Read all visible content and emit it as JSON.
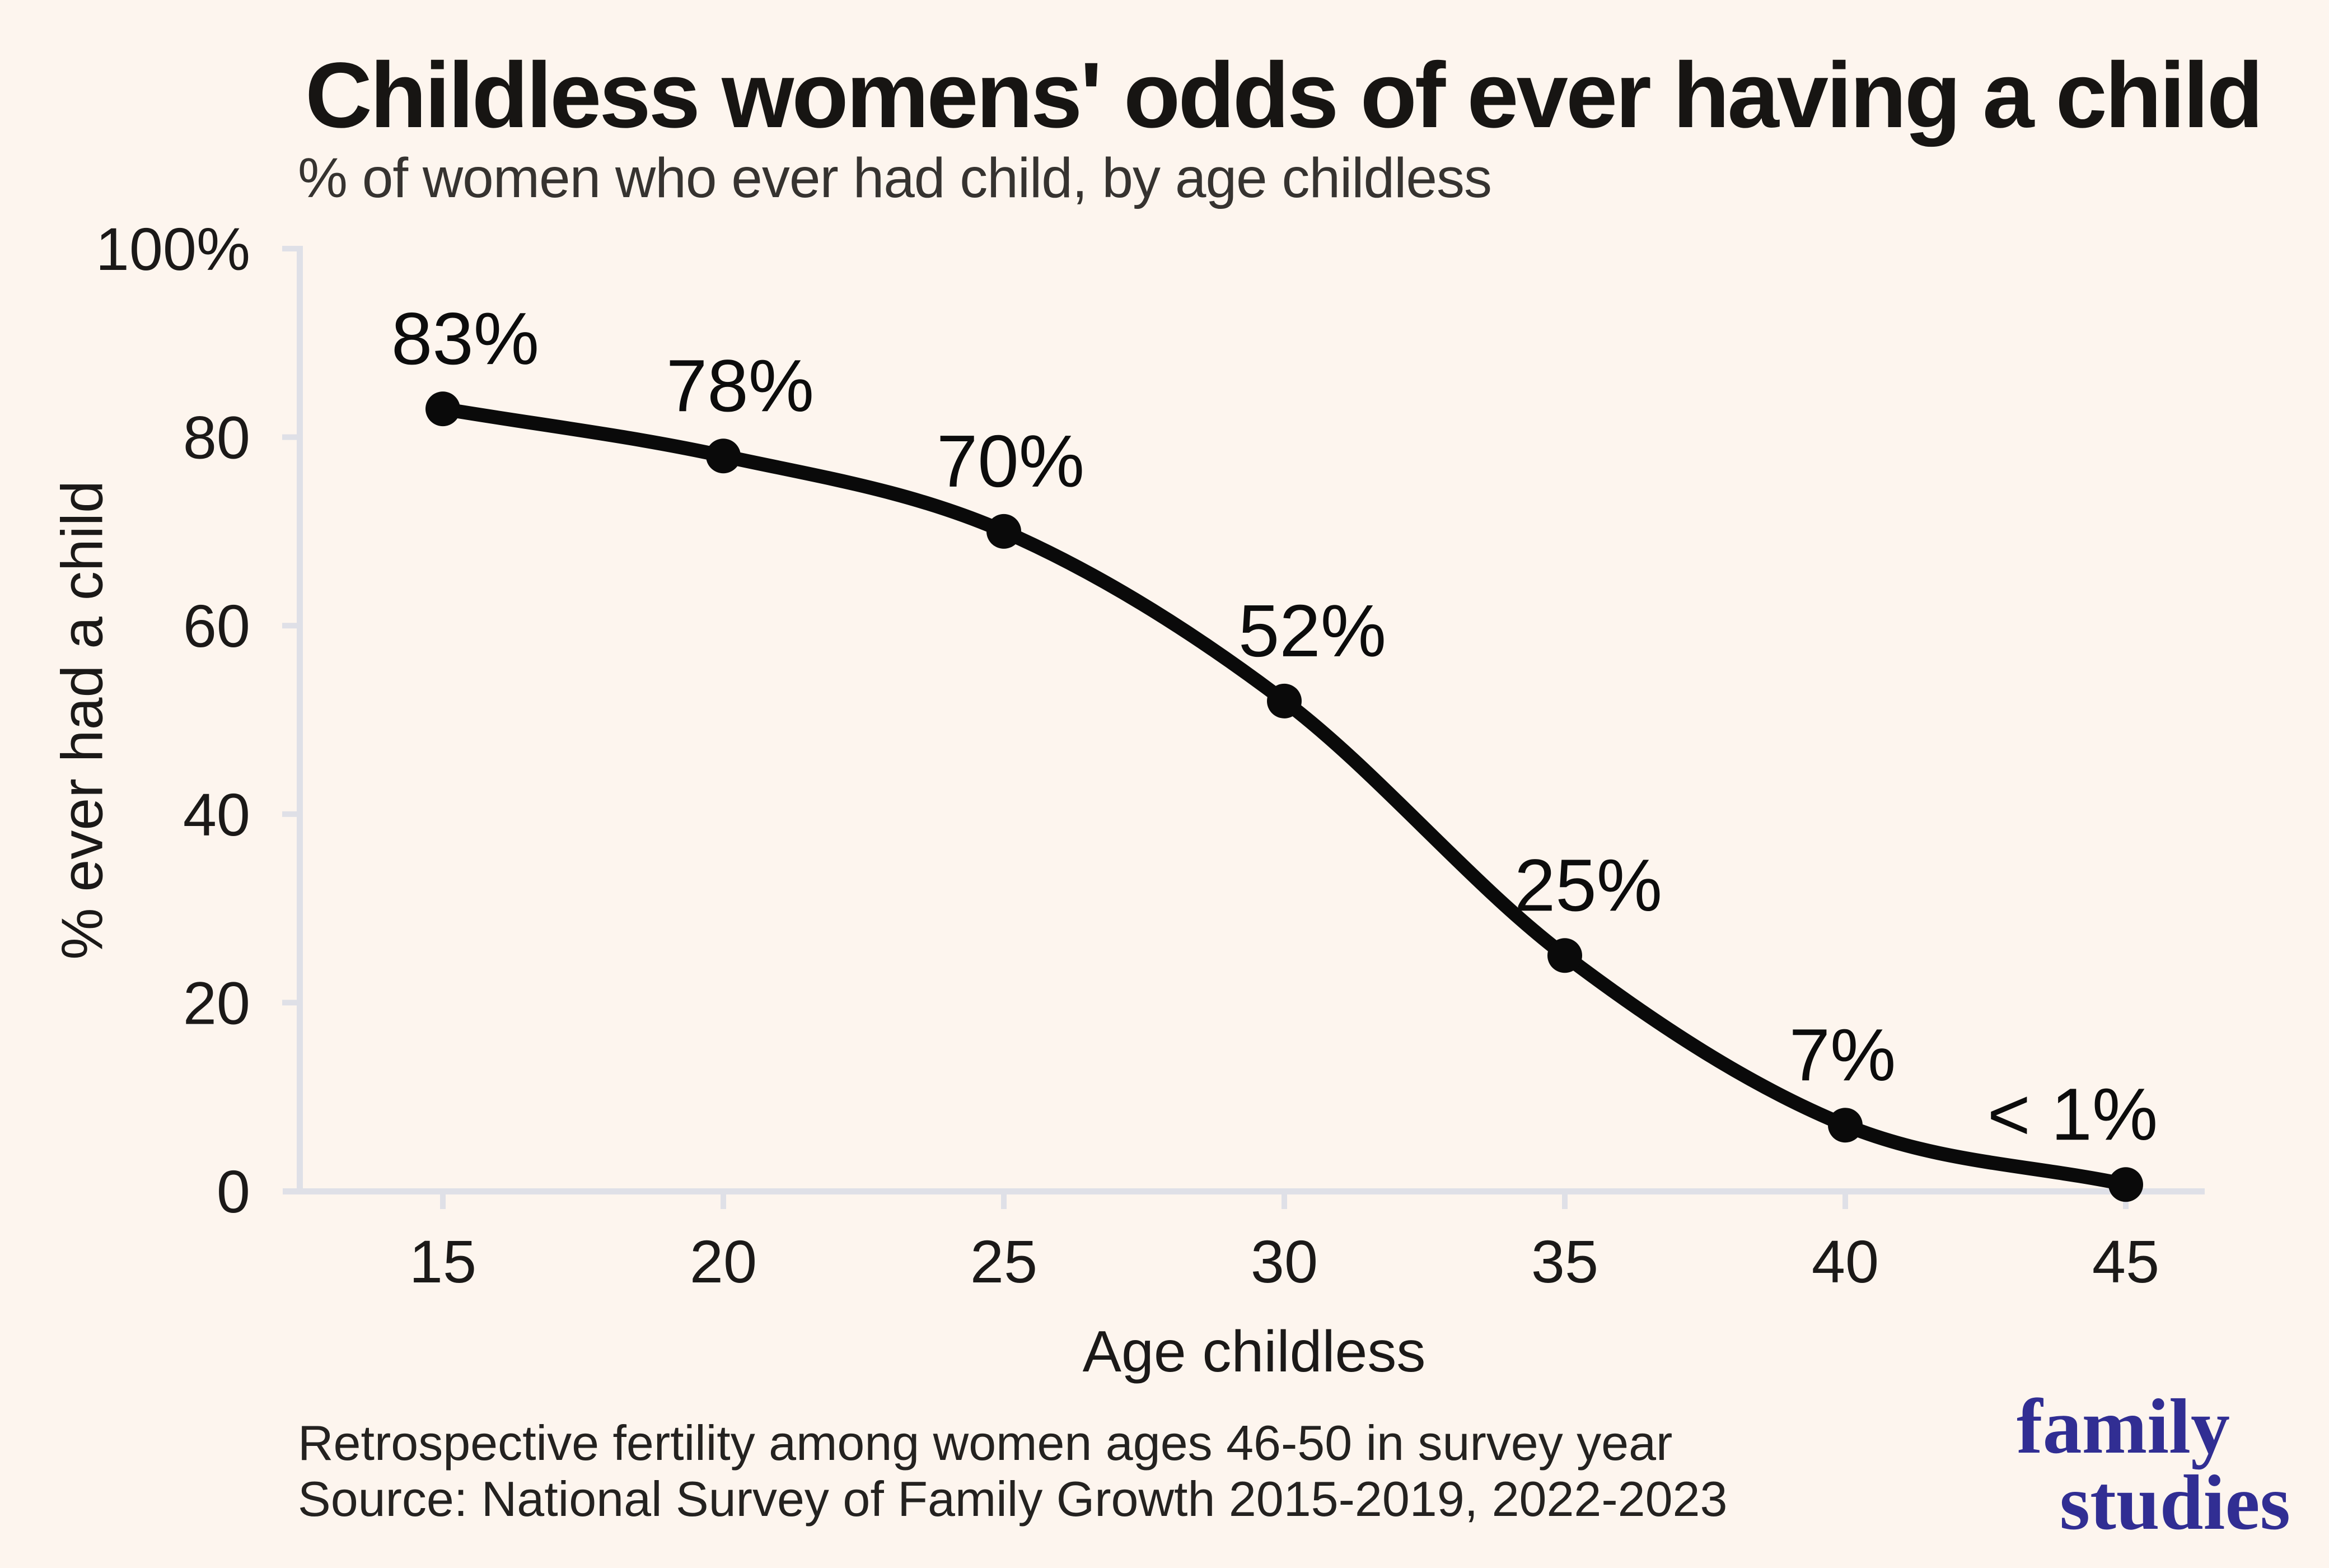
{
  "header": {
    "title": "Childless womens' odds of ever having a child",
    "subtitle": "% of women who ever had child, by age childless"
  },
  "chart_data": {
    "type": "line",
    "title": "Childless womens' odds of ever having a child",
    "subtitle": "% of women who ever had child, by age childless",
    "x": [
      15,
      20,
      25,
      30,
      35,
      40,
      45
    ],
    "values": [
      83,
      78,
      70,
      52,
      25,
      7,
      0.7
    ],
    "point_labels": [
      "83%",
      "78%",
      "70%",
      "52%",
      "25%",
      "7%",
      "< 1%"
    ],
    "xlabel": "Age childless",
    "ylabel": "% ever had a child",
    "xtick_labels": [
      "15",
      "20",
      "25",
      "30",
      "35",
      "40",
      "45"
    ],
    "ytick_values": [
      0,
      20,
      40,
      60,
      80,
      100
    ],
    "ytick_labels": [
      "0",
      "20",
      "40",
      "60",
      "80",
      "100%"
    ],
    "ylim": [
      0,
      100
    ],
    "xlim": [
      15,
      45
    ],
    "grid": false,
    "legend": "none",
    "line_color": "#0a0a0a",
    "point_color": "#0a0a0a",
    "label_color": "#0c0c0c",
    "tick_label_color": "#1b1918",
    "axis_color": "#dfe0e7",
    "background_color": "#FDF5EE"
  },
  "footer": {
    "note": "Retrospective fertility among women ages 46-50 in survey year",
    "source": "Source: National Survey of Family Growth 2015-2019, 2022-2023",
    "logo_line1": "family",
    "logo_line2": "studies",
    "logo_color": "#312e93"
  }
}
